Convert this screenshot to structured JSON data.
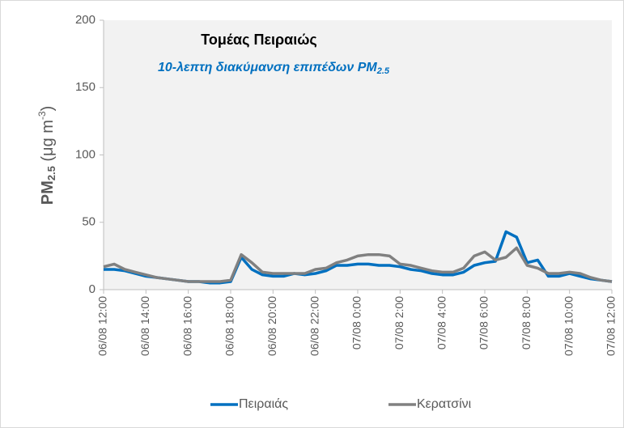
{
  "chart_data": {
    "type": "line",
    "title": "Τομέας Πειραιώς",
    "subtitle": [
      "10-λεπτη διακύμανση επιπέδων PM",
      "2.5"
    ],
    "y_label": [
      "PM",
      "2.5",
      " (μg m",
      "-3",
      ")"
    ],
    "categories": [
      "06/08 12:00",
      null,
      null,
      null,
      "06/08 14:00",
      null,
      null,
      null,
      "06/08 16:00",
      null,
      null,
      null,
      "06/08 18:00",
      null,
      null,
      null,
      "06/08 20:00",
      null,
      null,
      null,
      "06/08 22:00",
      null,
      null,
      null,
      "07/08 0:00",
      null,
      null,
      null,
      "07/08 2:00",
      null,
      null,
      null,
      "07/08 4:00",
      null,
      null,
      null,
      "07/08 6:00",
      null,
      null,
      null,
      "07/08 8:00",
      null,
      null,
      null,
      "07/08 10:00",
      null,
      null,
      null,
      "07/08 12:00"
    ],
    "series": [
      {
        "name": "Πειραιάς",
        "color": "#0070c0",
        "values": [
          15,
          15,
          14,
          12,
          10,
          9,
          8,
          7,
          6,
          6,
          5,
          5,
          6,
          24,
          15,
          11,
          10,
          10,
          12,
          11,
          12,
          14,
          18,
          18,
          19,
          19,
          18,
          18,
          17,
          15,
          14,
          12,
          11,
          11,
          13,
          18,
          20,
          21,
          43,
          39,
          20,
          22,
          10,
          10,
          12,
          10,
          8,
          7,
          6
        ]
      },
      {
        "name": "Κερατσίνι",
        "color": "#808080",
        "values": [
          17,
          19,
          15,
          13,
          11,
          9,
          8,
          7,
          6,
          6,
          6,
          6,
          7,
          26,
          20,
          13,
          12,
          12,
          12,
          12,
          15,
          16,
          20,
          22,
          25,
          26,
          26,
          25,
          19,
          18,
          16,
          14,
          13,
          13,
          16,
          25,
          28,
          22,
          24,
          31,
          18,
          16,
          12,
          12,
          13,
          12,
          9,
          7,
          6
        ]
      }
    ],
    "ylim": [
      0,
      200
    ],
    "yticks": [
      0,
      50,
      100,
      150,
      200
    ],
    "grid": false,
    "legend": "bottom"
  }
}
